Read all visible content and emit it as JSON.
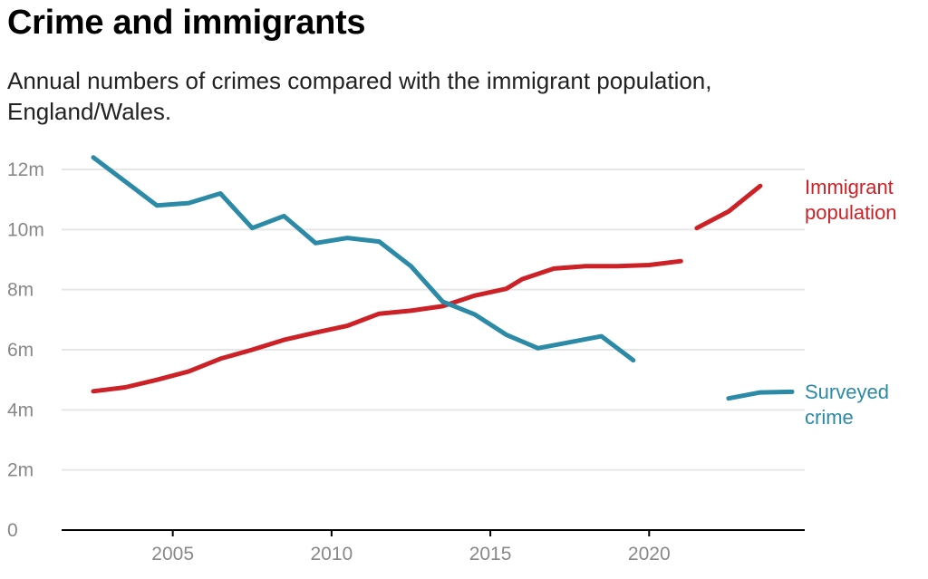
{
  "title": "Crime and immigrants",
  "subtitle": "Annual numbers of crimes compared with the immigrant population, England/Wales.",
  "colors": {
    "immigrant": "#cc2127",
    "crime": "#2b8aa6",
    "grid": "#e6e6e6",
    "axis": "#000000",
    "tick": "#888888"
  },
  "chart_data": {
    "type": "line",
    "grid": true,
    "legend": "inline-right",
    "xlim": [
      2001.5,
      2024.9
    ],
    "ylim": [
      0,
      12
    ],
    "x_ticks": [
      2005,
      2010,
      2015,
      2020
    ],
    "x_tick_labels": [
      "2005",
      "2010",
      "2015",
      "2020"
    ],
    "y_ticks": [
      0,
      2,
      4,
      6,
      8,
      10,
      12
    ],
    "y_tick_labels": [
      "0",
      "2m",
      "4m",
      "6m",
      "8m",
      "10m",
      "12m"
    ],
    "series": [
      {
        "name": "Immigrant population",
        "key": "immigrant",
        "label_lines": [
          "Immigrant",
          "population"
        ],
        "segments": [
          [
            [
              2002.5,
              4.62
            ],
            [
              2003.5,
              4.75
            ],
            [
              2004.5,
              5.0
            ],
            [
              2005.5,
              5.28
            ],
            [
              2006.5,
              5.7
            ],
            [
              2007.5,
              6.0
            ],
            [
              2008.5,
              6.33
            ],
            [
              2009.5,
              6.57
            ],
            [
              2010.5,
              6.8
            ],
            [
              2011.5,
              7.2
            ],
            [
              2012.5,
              7.3
            ],
            [
              2013.5,
              7.45
            ],
            [
              2014.5,
              7.8
            ],
            [
              2015.5,
              8.03
            ],
            [
              2016,
              8.35
            ],
            [
              2017,
              8.7
            ],
            [
              2018,
              8.78
            ],
            [
              2019,
              8.78
            ],
            [
              2020,
              8.82
            ],
            [
              2021,
              8.95
            ]
          ],
          [
            [
              2021.5,
              10.05
            ],
            [
              2022.5,
              10.6
            ],
            [
              2023.5,
              11.45
            ]
          ]
        ]
      },
      {
        "name": "Surveyed crime",
        "key": "crime",
        "label_lines": [
          "Surveyed",
          "crime"
        ],
        "segments": [
          [
            [
              2002.5,
              12.4
            ],
            [
              2003.5,
              11.6
            ],
            [
              2004.5,
              10.8
            ],
            [
              2005.5,
              10.88
            ],
            [
              2006.5,
              11.2
            ],
            [
              2007.5,
              10.05
            ],
            [
              2008.5,
              10.45
            ],
            [
              2009.5,
              9.55
            ],
            [
              2010.5,
              9.72
            ],
            [
              2011.5,
              9.6
            ],
            [
              2012.5,
              8.78
            ],
            [
              2013.5,
              7.6
            ],
            [
              2014.5,
              7.18
            ],
            [
              2015.5,
              6.5
            ],
            [
              2016.5,
              6.05
            ],
            [
              2017.5,
              6.25
            ],
            [
              2018.5,
              6.45
            ],
            [
              2019.5,
              5.65
            ]
          ],
          [
            [
              2022.5,
              4.38
            ],
            [
              2023.5,
              4.58
            ],
            [
              2024.5,
              4.6
            ]
          ]
        ]
      }
    ]
  }
}
